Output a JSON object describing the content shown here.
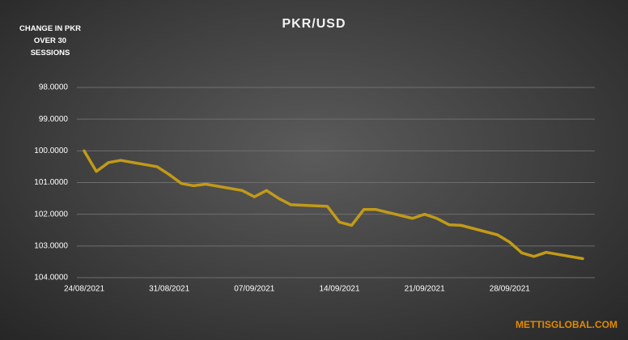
{
  "chart_data": {
    "type": "line",
    "title": "PKR/USD",
    "y_label": "CHANGE IN PKR OVER 30 SESSIONS",
    "watermark": "METTISGLOBAL.COM",
    "x": [
      "2021-08-24",
      "2021-08-25",
      "2021-08-26",
      "2021-08-27",
      "2021-08-30",
      "2021-08-31",
      "2021-09-01",
      "2021-09-02",
      "2021-09-03",
      "2021-09-06",
      "2021-09-07",
      "2021-09-08",
      "2021-09-09",
      "2021-09-10",
      "2021-09-13",
      "2021-09-14",
      "2021-09-15",
      "2021-09-16",
      "2021-09-17",
      "2021-09-20",
      "2021-09-21",
      "2021-09-22",
      "2021-09-23",
      "2021-09-24",
      "2021-09-27",
      "2021-09-28",
      "2021-09-29",
      "2021-09-30",
      "2021-10-01",
      "2021-10-04"
    ],
    "series": [
      {
        "name": "PKR/USD",
        "color": "#c29a17",
        "values": [
          100.0,
          100.65,
          100.37,
          100.3,
          100.5,
          100.75,
          101.03,
          101.1,
          101.05,
          101.25,
          101.45,
          101.25,
          101.5,
          101.7,
          101.75,
          102.25,
          102.35,
          101.85,
          101.85,
          102.13,
          102.0,
          102.13,
          102.33,
          102.35,
          102.65,
          102.88,
          103.22,
          103.33,
          103.2,
          103.4
        ]
      }
    ],
    "xlim": [
      "2021-08-24",
      "2021-10-05"
    ],
    "xticks": [
      {
        "value": "2021-08-24",
        "label": "24/08/2021"
      },
      {
        "value": "2021-08-31",
        "label": "31/08/2021"
      },
      {
        "value": "2021-09-07",
        "label": "07/09/2021"
      },
      {
        "value": "2021-09-14",
        "label": "14/09/2021"
      },
      {
        "value": "2021-09-21",
        "label": "21/09/2021"
      },
      {
        "value": "2021-09-28",
        "label": "28/09/2021"
      }
    ],
    "ylim": [
      98,
      104
    ],
    "y_inverted": true,
    "yticks": [
      {
        "value": 98,
        "label": "98.0000"
      },
      {
        "value": 99,
        "label": "99.0000"
      },
      {
        "value": 100,
        "label": "100.0000"
      },
      {
        "value": 101,
        "label": "101.0000"
      },
      {
        "value": 102,
        "label": "102.0000"
      },
      {
        "value": 103,
        "label": "103.0000"
      },
      {
        "value": 104,
        "label": "104.0000"
      }
    ],
    "grid": true
  }
}
